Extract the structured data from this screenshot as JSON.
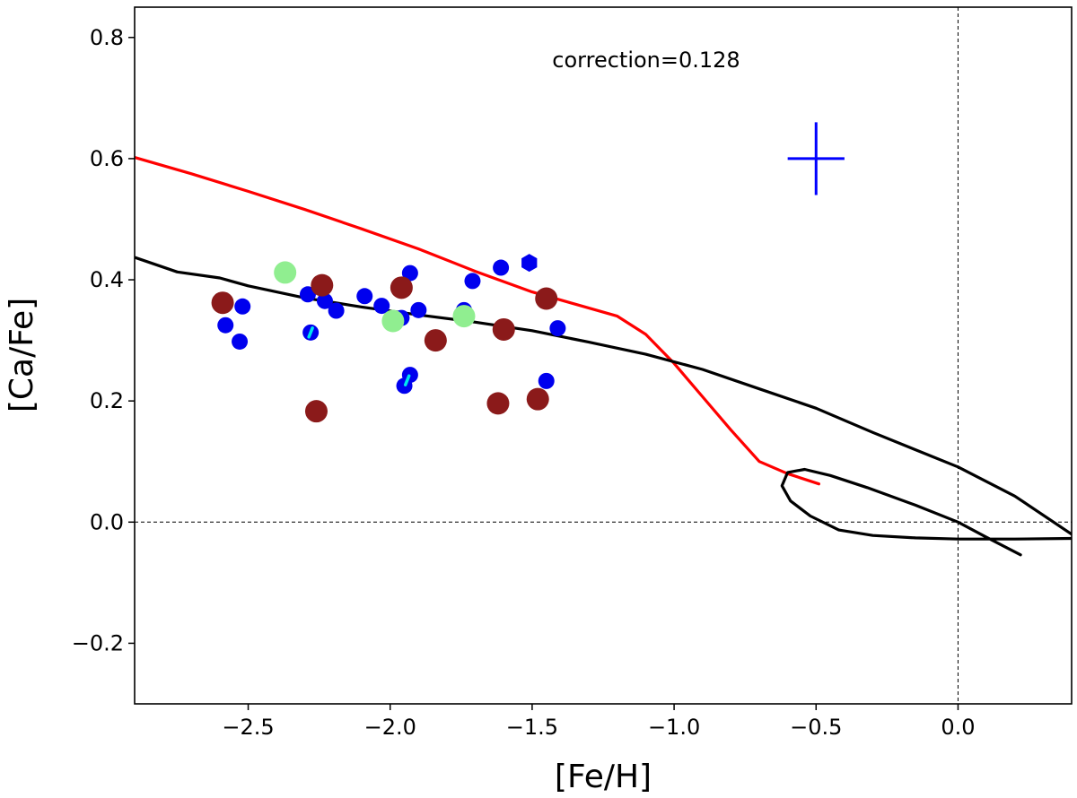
{
  "chart_data": {
    "type": "scatter",
    "xlabel": "[Fe/H]",
    "ylabel": "[Ca/Fe]",
    "xlim": [
      -2.9,
      0.4
    ],
    "ylim": [
      -0.3,
      0.85
    ],
    "xticks": [
      -2.5,
      -2.0,
      -1.5,
      -1.0,
      -0.5,
      0.0
    ],
    "xtick_labels": [
      "−2.5",
      "−2.0",
      "−1.5",
      "−1.0",
      "−0.5",
      "0.0"
    ],
    "yticks": [
      -0.2,
      0.0,
      0.2,
      0.4,
      0.6,
      0.8
    ],
    "ytick_labels": [
      "−0.2",
      "0.0",
      "0.2",
      "0.4",
      "0.6",
      "0.8"
    ],
    "annotation": "correction=0.128",
    "reference_lines": {
      "y": 0.0,
      "x": 0.0,
      "style": "dashed"
    },
    "error_cross": {
      "x": -0.5,
      "y": 0.6,
      "xerr": 0.1,
      "yerr": 0.06,
      "color": "#0000ff"
    },
    "series": [
      {
        "color": "#0000ee",
        "marker": "circle-small",
        "points": [
          [
            -2.58,
            0.325
          ],
          [
            -2.53,
            0.298
          ],
          [
            -2.52,
            0.356
          ],
          [
            -2.29,
            0.376
          ],
          [
            -2.28,
            0.313
          ],
          [
            -2.23,
            0.365
          ],
          [
            -2.19,
            0.349
          ],
          [
            -2.09,
            0.373
          ],
          [
            -2.03,
            0.357
          ],
          [
            -1.96,
            0.337
          ],
          [
            -1.93,
            0.411
          ],
          [
            -1.9,
            0.35
          ],
          [
            -1.95,
            0.225
          ],
          [
            -1.93,
            0.243
          ],
          [
            -1.74,
            0.35
          ],
          [
            -1.71,
            0.398
          ],
          [
            -1.61,
            0.42
          ],
          [
            -1.45,
            0.233
          ],
          [
            -1.41,
            0.32
          ]
        ]
      },
      {
        "color": "#0000ee",
        "marker": "hexagon",
        "points": [
          [
            -1.51,
            0.428
          ]
        ]
      },
      {
        "color": "#8b1a1a",
        "marker": "circle-large",
        "points": [
          [
            -2.59,
            0.362
          ],
          [
            -2.24,
            0.391
          ],
          [
            -2.26,
            0.183
          ],
          [
            -1.96,
            0.387
          ],
          [
            -1.84,
            0.3
          ],
          [
            -1.6,
            0.318
          ],
          [
            -1.62,
            0.196
          ],
          [
            -1.48,
            0.203
          ],
          [
            -1.45,
            0.369
          ]
        ]
      },
      {
        "color": "#90ee90",
        "marker": "circle-large",
        "points": [
          [
            -2.37,
            0.412
          ],
          [
            -1.99,
            0.332
          ],
          [
            -1.74,
            0.34
          ]
        ]
      },
      {
        "color": "#00e5ee",
        "marker": "cyan-dash",
        "points": [
          [
            -2.28,
            0.313
          ],
          [
            -1.94,
            0.234
          ]
        ]
      }
    ],
    "curves": [
      {
        "color": "#ff0000",
        "points": [
          [
            -2.9,
            0.602
          ],
          [
            -2.7,
            0.575
          ],
          [
            -2.5,
            0.546
          ],
          [
            -2.3,
            0.516
          ],
          [
            -2.1,
            0.484
          ],
          [
            -1.9,
            0.451
          ],
          [
            -1.7,
            0.414
          ],
          [
            -1.5,
            0.38
          ],
          [
            -1.35,
            0.36
          ],
          [
            -1.2,
            0.34
          ],
          [
            -1.1,
            0.31
          ],
          [
            -1.0,
            0.262
          ],
          [
            -0.9,
            0.207
          ],
          [
            -0.8,
            0.152
          ],
          [
            -0.7,
            0.1
          ],
          [
            -0.6,
            0.08
          ],
          [
            -0.49,
            0.063
          ]
        ]
      },
      {
        "color": "#000000",
        "points": [
          [
            -2.9,
            0.437
          ],
          [
            -2.75,
            0.413
          ],
          [
            -2.6,
            0.403
          ],
          [
            -2.5,
            0.39
          ],
          [
            -2.3,
            0.37
          ],
          [
            -2.1,
            0.355
          ],
          [
            -1.9,
            0.342
          ],
          [
            -1.7,
            0.33
          ],
          [
            -1.5,
            0.316
          ],
          [
            -1.3,
            0.297
          ],
          [
            -1.1,
            0.277
          ],
          [
            -0.9,
            0.252
          ],
          [
            -0.7,
            0.22
          ],
          [
            -0.5,
            0.188
          ],
          [
            -0.3,
            0.148
          ],
          [
            -0.1,
            0.11
          ],
          [
            0.0,
            0.091
          ],
          [
            0.2,
            0.043
          ],
          [
            0.4,
            -0.02
          ]
        ]
      },
      {
        "color": "#000000",
        "points": [
          [
            0.22,
            -0.054
          ],
          [
            0.1,
            -0.025
          ],
          [
            0.0,
            0.0
          ],
          [
            -0.15,
            0.028
          ],
          [
            -0.32,
            0.057
          ],
          [
            -0.45,
            0.077
          ],
          [
            -0.54,
            0.087
          ],
          [
            -0.6,
            0.082
          ],
          [
            -0.62,
            0.06
          ],
          [
            -0.59,
            0.035
          ],
          [
            -0.52,
            0.01
          ],
          [
            -0.42,
            -0.013
          ],
          [
            -0.3,
            -0.022
          ],
          [
            -0.15,
            -0.026
          ],
          [
            0.0,
            -0.028
          ],
          [
            0.2,
            -0.028
          ],
          [
            0.4,
            -0.027
          ]
        ]
      }
    ]
  }
}
